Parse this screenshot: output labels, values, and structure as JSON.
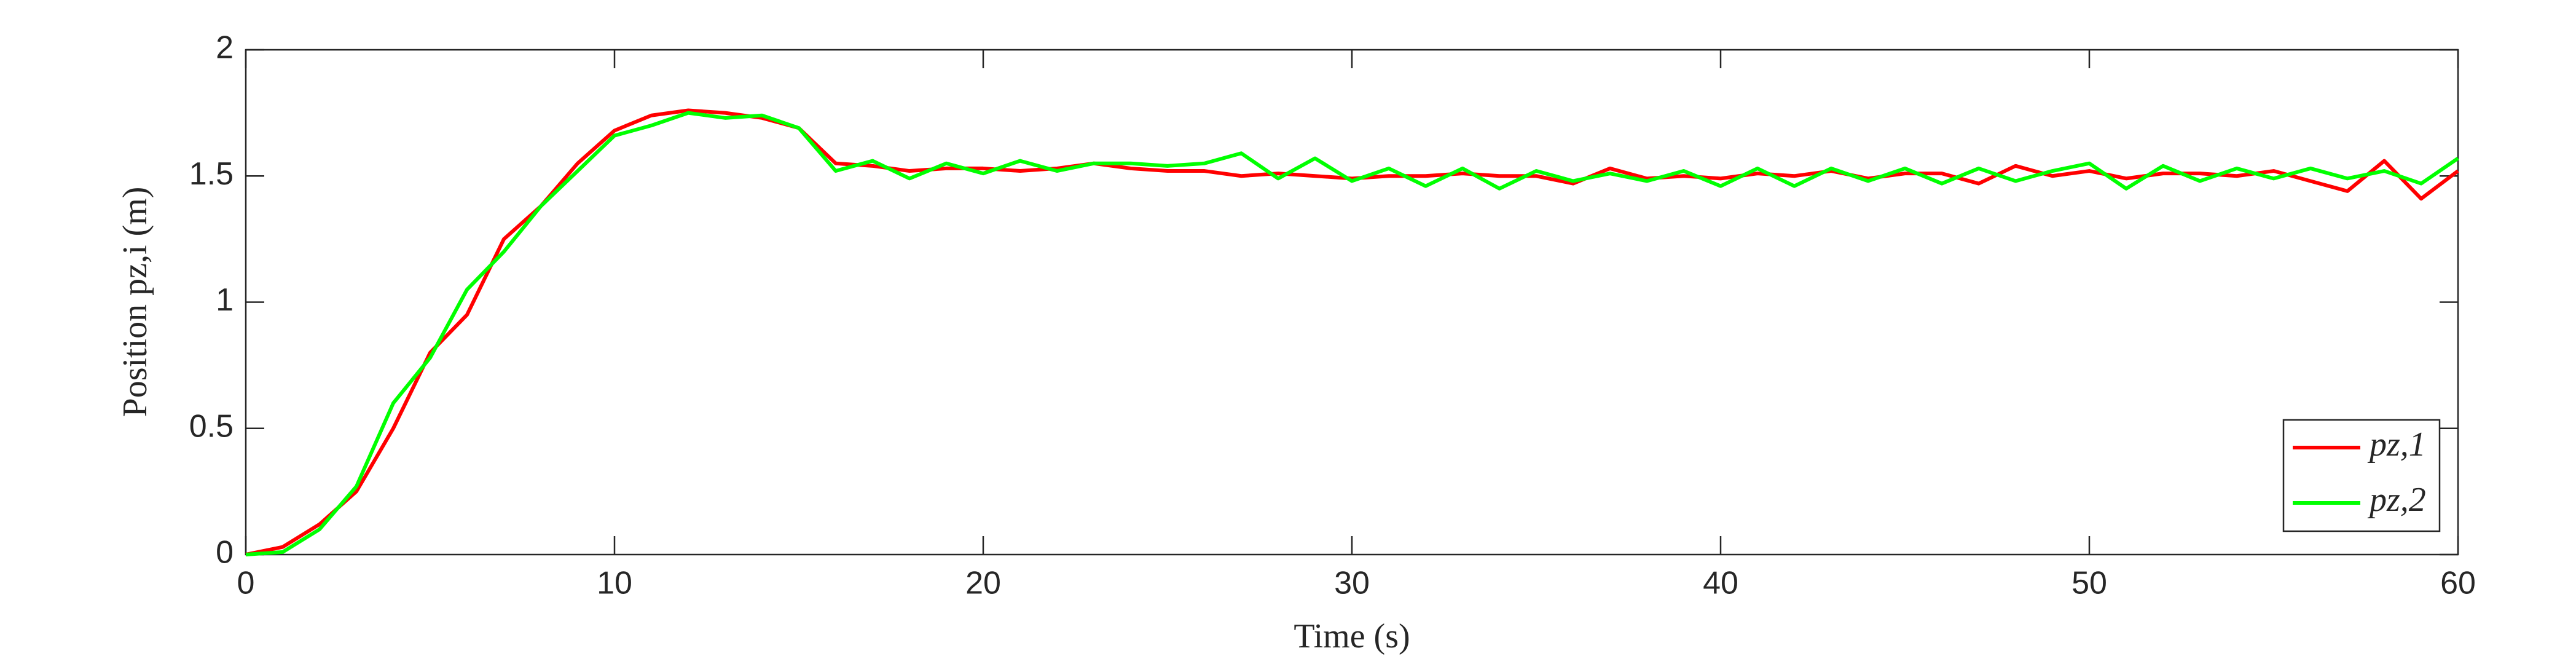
{
  "chart_data": {
    "type": "line",
    "x_label": "Time (s)",
    "y_label": "Position pz,i (m)",
    "x": [
      0,
      1,
      2,
      3,
      4,
      5,
      6,
      7,
      8,
      9,
      10,
      11,
      12,
      13,
      14,
      15,
      16,
      17,
      18,
      19,
      20,
      21,
      22,
      23,
      24,
      25,
      26,
      27,
      28,
      29,
      30,
      31,
      32,
      33,
      34,
      35,
      36,
      37,
      38,
      39,
      40,
      41,
      42,
      43,
      44,
      45,
      46,
      47,
      48,
      49,
      50,
      51,
      52,
      53,
      54,
      55,
      56,
      57,
      58,
      59,
      60
    ],
    "series": [
      {
        "name": "pz,1",
        "color": "#ff0000",
        "values": [
          0,
          0.03,
          0.12,
          0.25,
          0.5,
          0.8,
          0.95,
          1.25,
          1.38,
          1.55,
          1.68,
          1.74,
          1.76,
          1.75,
          1.73,
          1.69,
          1.55,
          1.54,
          1.52,
          1.53,
          1.53,
          1.52,
          1.53,
          1.55,
          1.53,
          1.52,
          1.52,
          1.5,
          1.51,
          1.5,
          1.49,
          1.5,
          1.5,
          1.51,
          1.5,
          1.5,
          1.47,
          1.53,
          1.49,
          1.5,
          1.49,
          1.51,
          1.5,
          1.52,
          1.49,
          1.51,
          1.51,
          1.47,
          1.54,
          1.5,
          1.52,
          1.49,
          1.51,
          1.51,
          1.5,
          1.52,
          1.48,
          1.44,
          1.56,
          1.41,
          1.52
        ]
      },
      {
        "name": "pz,2",
        "color": "#00ff00",
        "values": [
          0,
          0.01,
          0.1,
          0.27,
          0.6,
          0.78,
          1.05,
          1.2,
          1.38,
          1.52,
          1.66,
          1.7,
          1.75,
          1.73,
          1.74,
          1.69,
          1.52,
          1.56,
          1.49,
          1.55,
          1.51,
          1.56,
          1.52,
          1.55,
          1.55,
          1.54,
          1.55,
          1.59,
          1.49,
          1.57,
          1.48,
          1.53,
          1.46,
          1.53,
          1.45,
          1.52,
          1.48,
          1.51,
          1.48,
          1.52,
          1.46,
          1.53,
          1.46,
          1.53,
          1.48,
          1.53,
          1.47,
          1.53,
          1.48,
          1.52,
          1.55,
          1.45,
          1.54,
          1.48,
          1.53,
          1.49,
          1.53,
          1.49,
          1.52,
          1.47,
          1.57
        ]
      }
    ],
    "xlim": [
      0,
      60
    ],
    "ylim": [
      0,
      2
    ],
    "xticks": [
      0,
      10,
      20,
      30,
      40,
      50,
      60
    ],
    "yticks": [
      0,
      0.5,
      1,
      1.5,
      2
    ],
    "legend": "lower right"
  }
}
